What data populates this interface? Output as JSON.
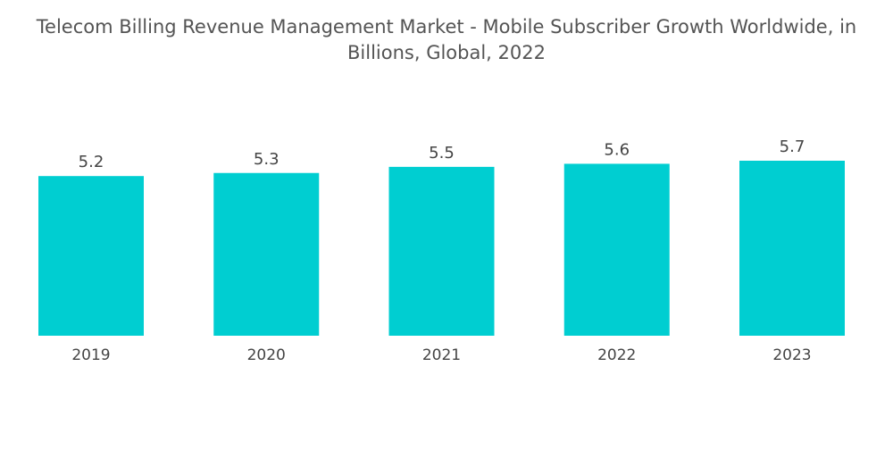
{
  "chart_data": {
    "type": "bar",
    "title_lines": [
      "Telecom Billing Revenue Management Market - Mobile Subscriber Growth Worldwide, in",
      "Billions, Global, 2022"
    ],
    "categories": [
      "2019",
      "2020",
      "2021",
      "2022",
      "2023"
    ],
    "values": [
      5.2,
      5.3,
      5.5,
      5.6,
      5.7
    ],
    "data_labels": [
      "5.2",
      "5.3",
      "5.5",
      "5.6",
      "5.7"
    ],
    "xlabel": "",
    "ylabel": "",
    "ylim": [
      0,
      5.7
    ],
    "grid": false,
    "legend": "none",
    "bar_color": "#00CED1"
  }
}
